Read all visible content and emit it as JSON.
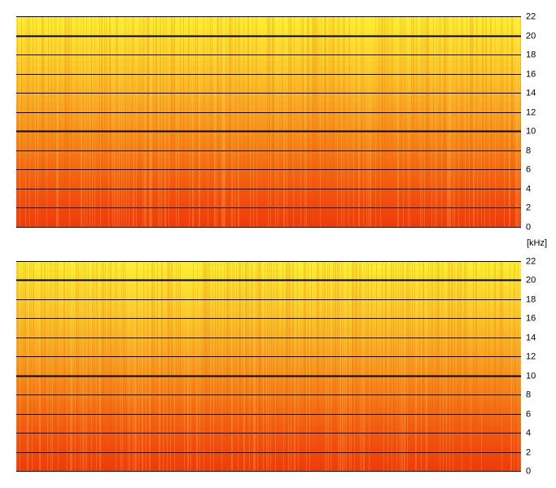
{
  "chart_data": [
    {
      "type": "spectrogram",
      "ylim": [
        0,
        22
      ],
      "yticks": [
        0,
        2,
        4,
        6,
        8,
        10,
        12,
        14,
        16,
        18,
        20,
        22
      ],
      "bold_yticks": [
        10,
        20
      ],
      "grid": true,
      "y_label": "[kHz]"
    },
    {
      "type": "spectrogram",
      "ylim": [
        0,
        22
      ],
      "yticks": [
        0,
        2,
        4,
        6,
        8,
        10,
        12,
        14,
        16,
        18,
        20,
        22
      ],
      "bold_yticks": [
        10,
        20
      ],
      "grid": true
    }
  ]
}
